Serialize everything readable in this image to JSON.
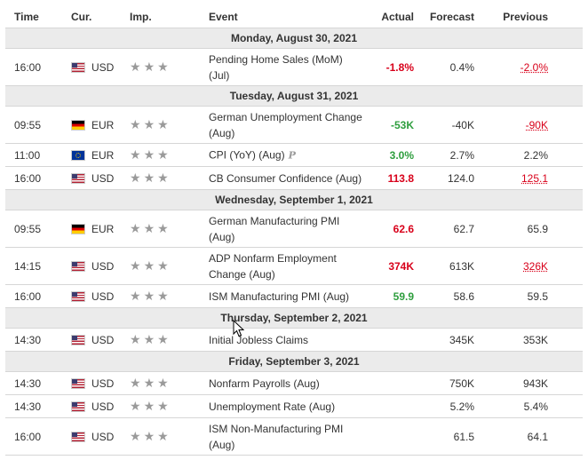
{
  "columns": {
    "time": "Time",
    "currency": "Cur.",
    "importance": "Imp.",
    "event": "Event",
    "actual": "Actual",
    "forecast": "Forecast",
    "previous": "Previous"
  },
  "colors": {
    "negative": "#d8001a",
    "positive": "#2e9e3e",
    "day_bg": "#ebebeb"
  },
  "days": [
    {
      "label": "Monday, August 30, 2021",
      "events": [
        {
          "time": "16:00",
          "flag": "us-flag-icon",
          "currency": "USD",
          "event_line1": "Pending Home Sales (MoM)",
          "event_line2": "(Jul)",
          "actual": "-1.8%",
          "actual_tone": "neg",
          "forecast": "0.4%",
          "previous": "-2.0%",
          "previous_revised": true,
          "tall": true
        }
      ]
    },
    {
      "label": "Tuesday, August 31, 2021",
      "events": [
        {
          "time": "09:55",
          "flag": "germany-flag-icon",
          "currency": "EUR",
          "event_line1": "German Unemployment Change",
          "event_line2": "(Aug)",
          "actual": "-53K",
          "actual_tone": "pos",
          "forecast": "-40K",
          "previous": "-90K",
          "previous_revised": true,
          "tall": true
        },
        {
          "time": "11:00",
          "flag": "eu-flag-icon",
          "currency": "EUR",
          "event_line1": "CPI (YoY) (Aug)",
          "preliminary": "P",
          "actual": "3.0%",
          "actual_tone": "pos",
          "forecast": "2.7%",
          "previous": "2.2%",
          "tall": false
        },
        {
          "time": "16:00",
          "flag": "us-flag-icon",
          "currency": "USD",
          "event_line1": "CB Consumer Confidence (Aug)",
          "actual": "113.8",
          "actual_tone": "neg",
          "forecast": "124.0",
          "previous": "125.1",
          "previous_revised": true,
          "tall": false
        }
      ]
    },
    {
      "label": "Wednesday, September 1, 2021",
      "events": [
        {
          "time": "09:55",
          "flag": "germany-flag-icon",
          "currency": "EUR",
          "event_line1": "German Manufacturing PMI",
          "event_line2": "(Aug)",
          "actual": "62.6",
          "actual_tone": "neg",
          "forecast": "62.7",
          "previous": "65.9",
          "tall": true
        },
        {
          "time": "14:15",
          "flag": "us-flag-icon",
          "currency": "USD",
          "event_line1": "ADP Nonfarm Employment",
          "event_line2": "Change (Aug)",
          "actual": "374K",
          "actual_tone": "neg",
          "forecast": "613K",
          "previous": "326K",
          "previous_revised": true,
          "tall": true
        },
        {
          "time": "16:00",
          "flag": "us-flag-icon",
          "currency": "USD",
          "event_line1": "ISM Manufacturing PMI (Aug)",
          "actual": "59.9",
          "actual_tone": "pos",
          "forecast": "58.6",
          "previous": "59.5",
          "tall": false
        }
      ]
    },
    {
      "label": "Thursday, September 2, 2021",
      "events": [
        {
          "time": "14:30",
          "flag": "us-flag-icon",
          "currency": "USD",
          "event_line1": "Initial Jobless Claims",
          "actual": "",
          "forecast": "345K",
          "previous": "353K",
          "tall": false
        }
      ]
    },
    {
      "label": "Friday, September 3, 2021",
      "events": [
        {
          "time": "14:30",
          "flag": "us-flag-icon",
          "currency": "USD",
          "event_line1": "Nonfarm Payrolls (Aug)",
          "actual": "",
          "forecast": "750K",
          "previous": "943K",
          "tall": false
        },
        {
          "time": "14:30",
          "flag": "us-flag-icon",
          "currency": "USD",
          "event_line1": "Unemployment Rate (Aug)",
          "actual": "",
          "forecast": "5.2%",
          "previous": "5.4%",
          "tall": false
        },
        {
          "time": "16:00",
          "flag": "us-flag-icon",
          "currency": "USD",
          "event_line1": "ISM Non-Manufacturing PMI",
          "event_line2": "(Aug)",
          "actual": "",
          "forecast": "61.5",
          "previous": "64.1",
          "tall": true
        }
      ]
    }
  ],
  "importance_stars": 3
}
